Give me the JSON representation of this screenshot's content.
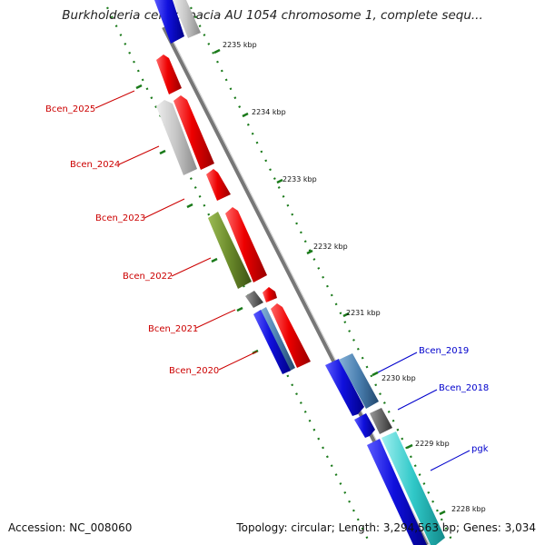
{
  "title": "Burkholderia cenocepacia AU 1054 chromosome 1, complete sequ...",
  "footer": {
    "accession": "Accession: NC_008060",
    "stats": "Topology: circular; Length: 3,294,563 bp; Genes: 3,034"
  },
  "ticks": [
    {
      "label": "2235 kbp"
    },
    {
      "label": "2234 kbp"
    },
    {
      "label": "2233 kbp"
    },
    {
      "label": "2232 kbp"
    },
    {
      "label": "2231 kbp"
    },
    {
      "label": "2230 kbp"
    },
    {
      "label": "2229 kbp"
    },
    {
      "label": "2228 kbp"
    }
  ],
  "gene_labels": [
    {
      "name": "Bcen_2025",
      "color": "#cc0000"
    },
    {
      "name": "Bcen_2024",
      "color": "#cc0000"
    },
    {
      "name": "Bcen_2023",
      "color": "#cc0000"
    },
    {
      "name": "Bcen_2022",
      "color": "#cc0000"
    },
    {
      "name": "Bcen_2021",
      "color": "#cc0000"
    },
    {
      "name": "Bcen_2020",
      "color": "#cc0000"
    },
    {
      "name": "Bcen_2019",
      "color": "#0000cc"
    },
    {
      "name": "Bcen_2018",
      "color": "#0000cc"
    },
    {
      "name": "pgk",
      "color": "#0000cc"
    }
  ],
  "colors": {
    "reverse_gene": "#ee0000",
    "forward_gene": "#1010dd",
    "gray_gene": "#c4c4c4",
    "olive_gene": "#6a8a2a",
    "steel_gene": "#4a7fb0",
    "cyan_gene": "#30c8c8",
    "backbone": "#888888",
    "tick_mark": "#1a7a1a"
  }
}
